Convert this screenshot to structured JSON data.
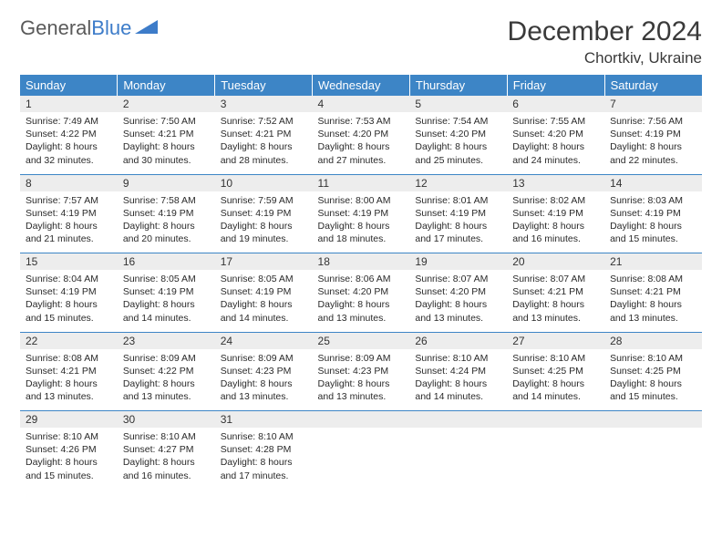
{
  "logo": {
    "text1": "General",
    "text2": "Blue"
  },
  "title": "December 2024",
  "location": "Chortkiv, Ukraine",
  "colors": {
    "header_bg": "#3d85c6",
    "header_text": "#ffffff",
    "daynum_bg": "#ededed",
    "rule": "#3d85c6",
    "title_color": "#3a3a3a",
    "logo_gray": "#5a5a5a",
    "logo_blue": "#3d7cc9"
  },
  "weekdays": [
    "Sunday",
    "Monday",
    "Tuesday",
    "Wednesday",
    "Thursday",
    "Friday",
    "Saturday"
  ],
  "weeks": [
    [
      {
        "n": "1",
        "sunrise": "7:49 AM",
        "sunset": "4:22 PM",
        "dl": "8 hours and 32 minutes."
      },
      {
        "n": "2",
        "sunrise": "7:50 AM",
        "sunset": "4:21 PM",
        "dl": "8 hours and 30 minutes."
      },
      {
        "n": "3",
        "sunrise": "7:52 AM",
        "sunset": "4:21 PM",
        "dl": "8 hours and 28 minutes."
      },
      {
        "n": "4",
        "sunrise": "7:53 AM",
        "sunset": "4:20 PM",
        "dl": "8 hours and 27 minutes."
      },
      {
        "n": "5",
        "sunrise": "7:54 AM",
        "sunset": "4:20 PM",
        "dl": "8 hours and 25 minutes."
      },
      {
        "n": "6",
        "sunrise": "7:55 AM",
        "sunset": "4:20 PM",
        "dl": "8 hours and 24 minutes."
      },
      {
        "n": "7",
        "sunrise": "7:56 AM",
        "sunset": "4:19 PM",
        "dl": "8 hours and 22 minutes."
      }
    ],
    [
      {
        "n": "8",
        "sunrise": "7:57 AM",
        "sunset": "4:19 PM",
        "dl": "8 hours and 21 minutes."
      },
      {
        "n": "9",
        "sunrise": "7:58 AM",
        "sunset": "4:19 PM",
        "dl": "8 hours and 20 minutes."
      },
      {
        "n": "10",
        "sunrise": "7:59 AM",
        "sunset": "4:19 PM",
        "dl": "8 hours and 19 minutes."
      },
      {
        "n": "11",
        "sunrise": "8:00 AM",
        "sunset": "4:19 PM",
        "dl": "8 hours and 18 minutes."
      },
      {
        "n": "12",
        "sunrise": "8:01 AM",
        "sunset": "4:19 PM",
        "dl": "8 hours and 17 minutes."
      },
      {
        "n": "13",
        "sunrise": "8:02 AM",
        "sunset": "4:19 PM",
        "dl": "8 hours and 16 minutes."
      },
      {
        "n": "14",
        "sunrise": "8:03 AM",
        "sunset": "4:19 PM",
        "dl": "8 hours and 15 minutes."
      }
    ],
    [
      {
        "n": "15",
        "sunrise": "8:04 AM",
        "sunset": "4:19 PM",
        "dl": "8 hours and 15 minutes."
      },
      {
        "n": "16",
        "sunrise": "8:05 AM",
        "sunset": "4:19 PM",
        "dl": "8 hours and 14 minutes."
      },
      {
        "n": "17",
        "sunrise": "8:05 AM",
        "sunset": "4:19 PM",
        "dl": "8 hours and 14 minutes."
      },
      {
        "n": "18",
        "sunrise": "8:06 AM",
        "sunset": "4:20 PM",
        "dl": "8 hours and 13 minutes."
      },
      {
        "n": "19",
        "sunrise": "8:07 AM",
        "sunset": "4:20 PM",
        "dl": "8 hours and 13 minutes."
      },
      {
        "n": "20",
        "sunrise": "8:07 AM",
        "sunset": "4:21 PM",
        "dl": "8 hours and 13 minutes."
      },
      {
        "n": "21",
        "sunrise": "8:08 AM",
        "sunset": "4:21 PM",
        "dl": "8 hours and 13 minutes."
      }
    ],
    [
      {
        "n": "22",
        "sunrise": "8:08 AM",
        "sunset": "4:21 PM",
        "dl": "8 hours and 13 minutes."
      },
      {
        "n": "23",
        "sunrise": "8:09 AM",
        "sunset": "4:22 PM",
        "dl": "8 hours and 13 minutes."
      },
      {
        "n": "24",
        "sunrise": "8:09 AM",
        "sunset": "4:23 PM",
        "dl": "8 hours and 13 minutes."
      },
      {
        "n": "25",
        "sunrise": "8:09 AM",
        "sunset": "4:23 PM",
        "dl": "8 hours and 13 minutes."
      },
      {
        "n": "26",
        "sunrise": "8:10 AM",
        "sunset": "4:24 PM",
        "dl": "8 hours and 14 minutes."
      },
      {
        "n": "27",
        "sunrise": "8:10 AM",
        "sunset": "4:25 PM",
        "dl": "8 hours and 14 minutes."
      },
      {
        "n": "28",
        "sunrise": "8:10 AM",
        "sunset": "4:25 PM",
        "dl": "8 hours and 15 minutes."
      }
    ],
    [
      {
        "n": "29",
        "sunrise": "8:10 AM",
        "sunset": "4:26 PM",
        "dl": "8 hours and 15 minutes."
      },
      {
        "n": "30",
        "sunrise": "8:10 AM",
        "sunset": "4:27 PM",
        "dl": "8 hours and 16 minutes."
      },
      {
        "n": "31",
        "sunrise": "8:10 AM",
        "sunset": "4:28 PM",
        "dl": "8 hours and 17 minutes."
      },
      null,
      null,
      null,
      null
    ]
  ],
  "labels": {
    "sunrise": "Sunrise:",
    "sunset": "Sunset:",
    "daylight": "Daylight:"
  }
}
